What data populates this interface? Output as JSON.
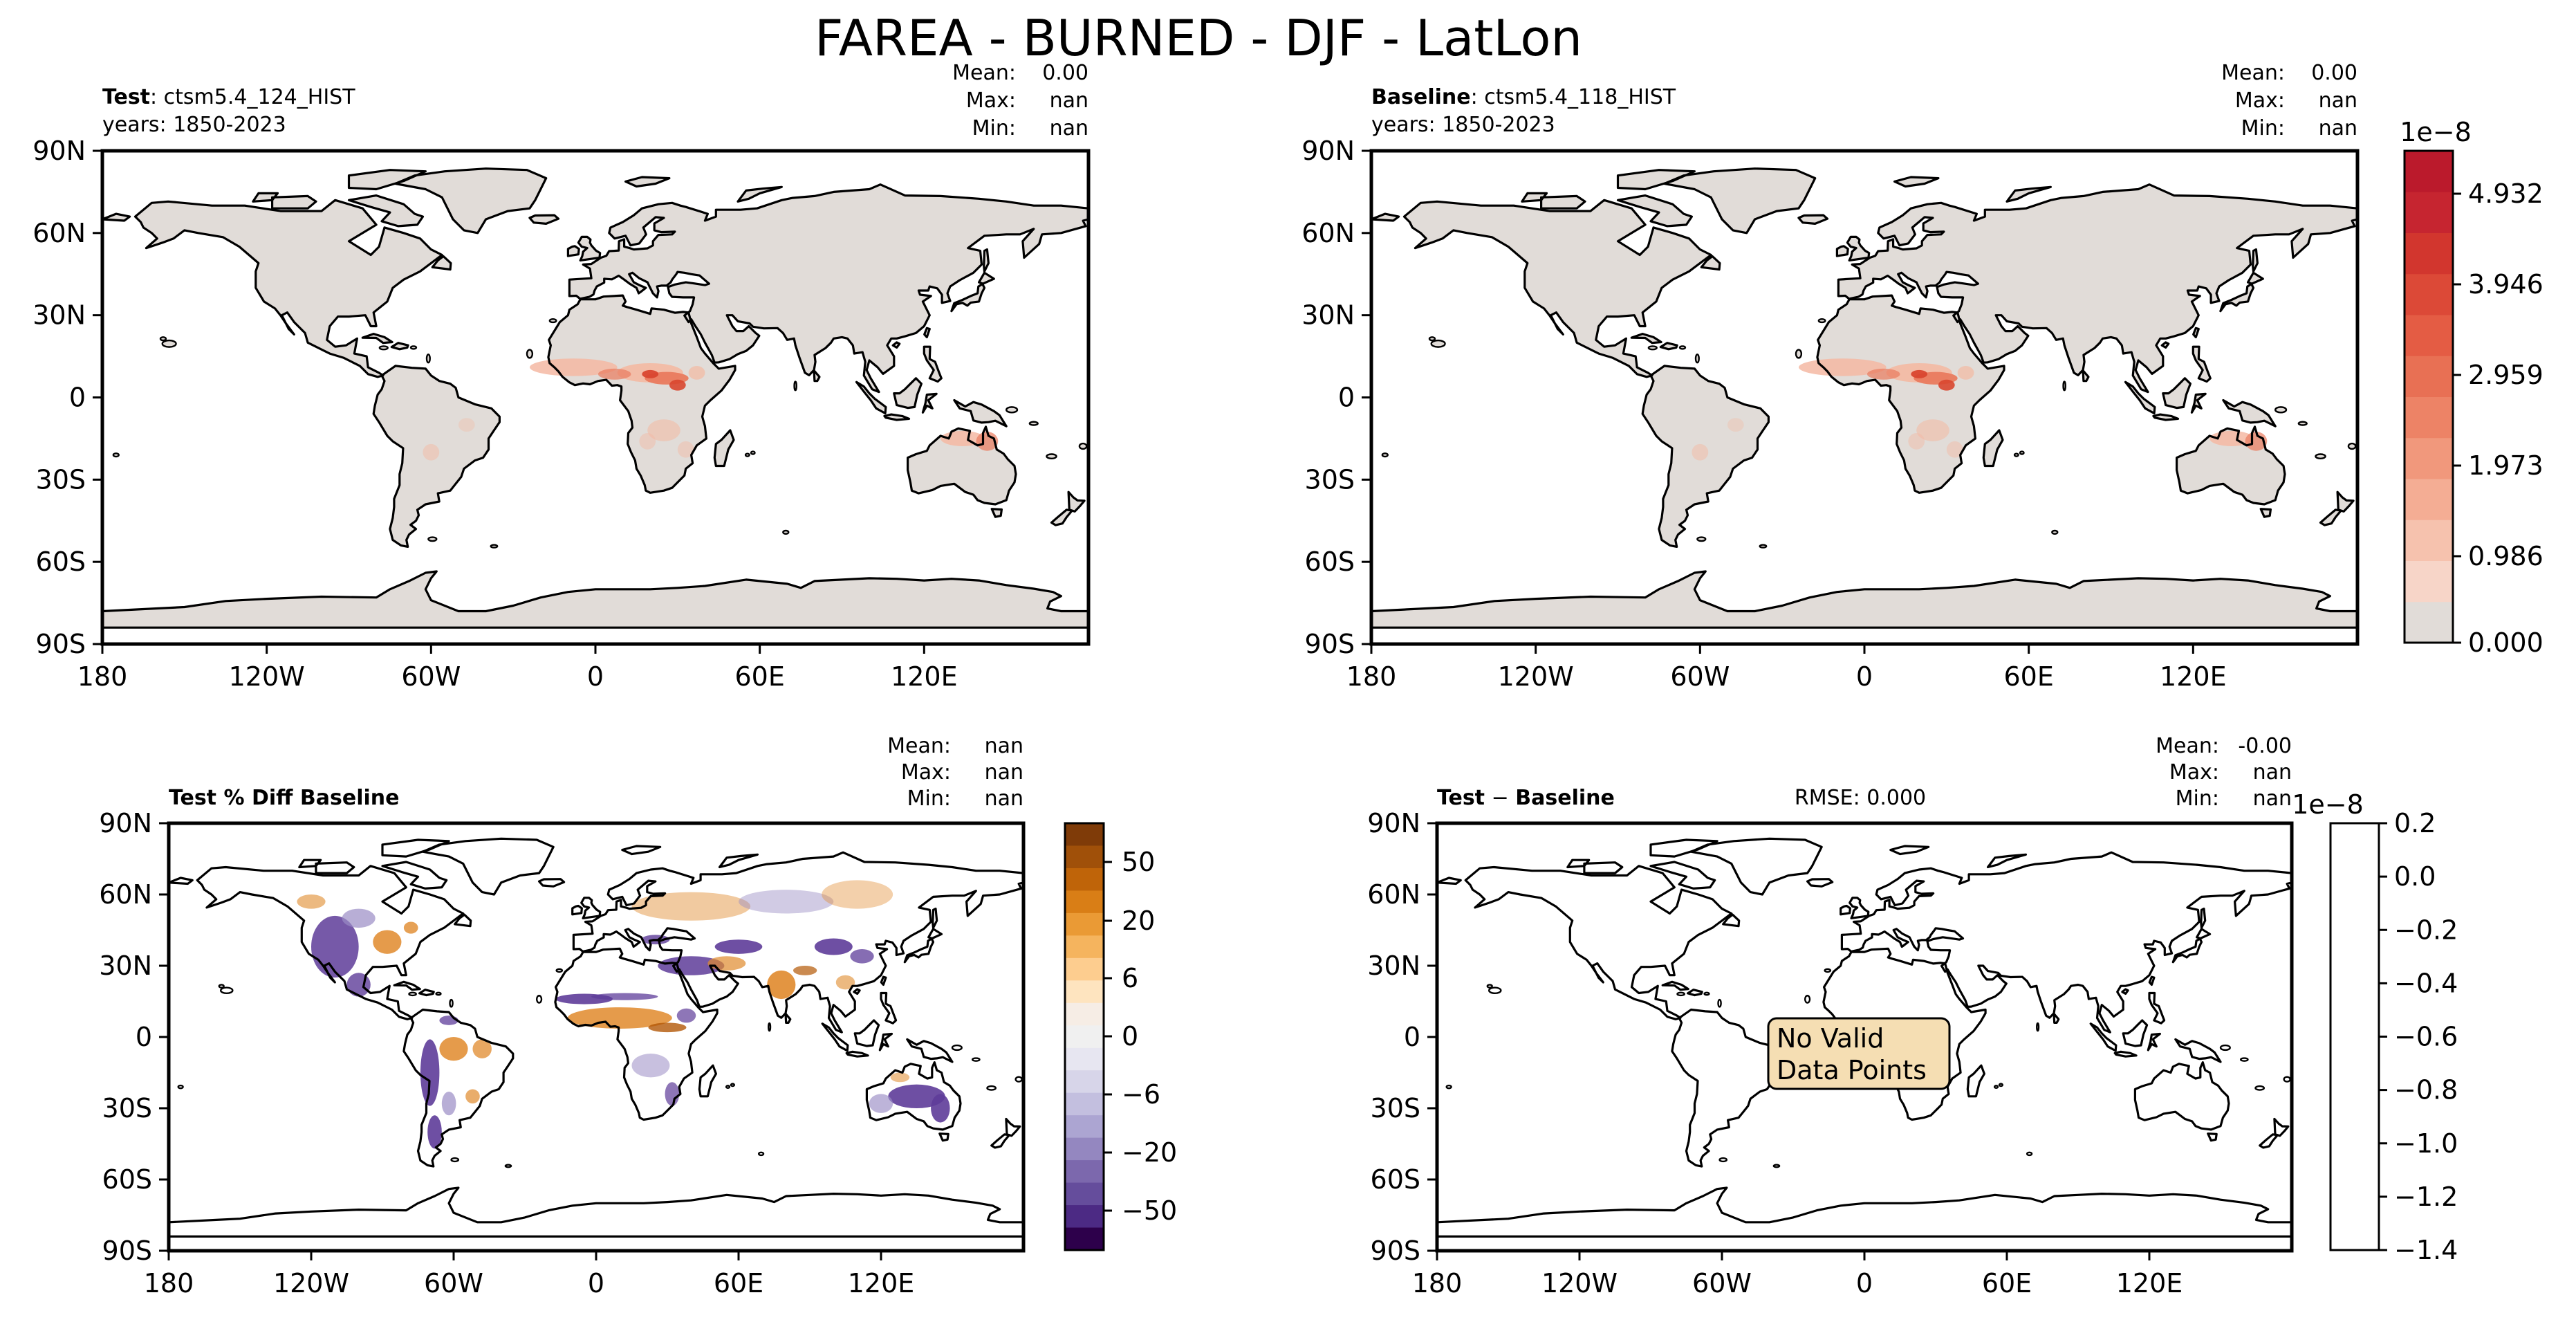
{
  "figure": {
    "title": "FAREA - BURNED - DJF - LatLon"
  },
  "colors": {
    "land_gray": "#e1dcd8",
    "pale_red": "#f4b9a3",
    "mid_red": "#e97a5e",
    "dark_red": "#d9462f",
    "no_data_box": "#f5deb3",
    "diff_orange": "#e08a2c",
    "diff_dark_orange": "#b35806",
    "diff_purple": "#5e3c99",
    "diff_light_purple": "#9a8cc4"
  },
  "chart_data": [
    {
      "type": "heatmap",
      "panel": "test",
      "label_bold": "Test",
      "label_rest": ": ctsm5.4_124_HIST",
      "years": "years: 1850-2023",
      "stats": {
        "mean_label": "Mean:",
        "mean": "0.00",
        "max_label": "Max:",
        "max": "nan",
        "min_label": "Min:",
        "min": "nan"
      },
      "xticks": [
        "180",
        "120W",
        "60W",
        "0",
        "60E",
        "120E"
      ],
      "yticks": [
        "90N",
        "60N",
        "30N",
        "0",
        "30S",
        "60S",
        "90S"
      ],
      "xlim": [
        -180,
        180
      ],
      "ylim": [
        -90,
        90
      ]
    },
    {
      "type": "heatmap",
      "panel": "baseline",
      "label_bold": "Baseline",
      "label_rest": ": ctsm5.4_118_HIST",
      "years": "years: 1850-2023",
      "stats": {
        "mean_label": "Mean:",
        "mean": "0.00",
        "max_label": "Max:",
        "max": "nan",
        "min_label": "Min:",
        "min": "nan"
      },
      "xticks": [
        "180",
        "120W",
        "60W",
        "0",
        "60E",
        "120E"
      ],
      "yticks": [
        "90N",
        "60N",
        "30N",
        "0",
        "30S",
        "60S",
        "90S"
      ],
      "xlim": [
        -180,
        180
      ],
      "ylim": [
        -90,
        90
      ],
      "colorbar": {
        "exponent": "1e−8",
        "ticks": [
          "4.932",
          "3.946",
          "2.959",
          "1.973",
          "0.986",
          "0.000"
        ],
        "colors": [
          "#e1dcd8",
          "#f7d5c8",
          "#f6c2ae",
          "#f4ad94",
          "#f1987c",
          "#ed8366",
          "#e87054",
          "#e45c44",
          "#dc4937",
          "#d2362e",
          "#c62530",
          "#bb1a2c"
        ]
      }
    },
    {
      "type": "heatmap",
      "panel": "percent_diff",
      "title": "Test % Diff Baseline",
      "stats": {
        "mean_label": "Mean:",
        "mean": "nan",
        "max_label": "Max:",
        "max": "nan",
        "min_label": "Min:",
        "min": "nan"
      },
      "xticks": [
        "180",
        "120W",
        "60W",
        "0",
        "60E",
        "120E"
      ],
      "yticks": [
        "90N",
        "60N",
        "30N",
        "0",
        "30S",
        "60S",
        "90S"
      ],
      "xlim": [
        -180,
        180
      ],
      "ylim": [
        -90,
        90
      ],
      "colorbar": {
        "ticks": [
          "50",
          "20",
          "6",
          "0",
          "−6",
          "−20",
          "−50"
        ],
        "colors": [
          "#7f3b08",
          "#a05009",
          "#bf6409",
          "#d97e16",
          "#ea9a35",
          "#f5b45e",
          "#fdcd8f",
          "#fee4bf",
          "#f6ede5",
          "#f0f0f0",
          "#e7e6f1",
          "#d7d5e9",
          "#c3bfdf",
          "#aca5d2",
          "#9487c0",
          "#7c68ad",
          "#654d9c",
          "#4c2a84",
          "#2d004b"
        ]
      }
    },
    {
      "type": "heatmap",
      "panel": "difference",
      "title_left": "Test",
      "title_op": " − ",
      "title_right": "Baseline",
      "rmse": "RMSE: 0.000",
      "no_data_text": [
        "No Valid",
        "Data Points"
      ],
      "stats": {
        "mean_label": "Mean:",
        "mean": "-0.00",
        "max_label": "Max:",
        "max": "nan",
        "min_label": "Min:",
        "min": "nan"
      },
      "xticks": [
        "180",
        "120W",
        "60W",
        "0",
        "60E",
        "120E"
      ],
      "yticks": [
        "90N",
        "60N",
        "30N",
        "0",
        "30S",
        "60S",
        "90S"
      ],
      "xlim": [
        -180,
        180
      ],
      "ylim": [
        -90,
        90
      ],
      "colorbar": {
        "exponent": "1e−8",
        "ticks": [
          "0.2",
          "0.0",
          "−0.2",
          "−0.4",
          "−0.6",
          "−0.8",
          "−1.0",
          "−1.2",
          "−1.4"
        ],
        "range": [
          -1.4,
          0.2
        ]
      }
    }
  ]
}
